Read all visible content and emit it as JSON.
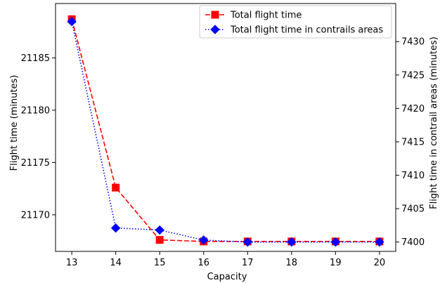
{
  "chart_data": {
    "type": "line",
    "title": "",
    "xlabel": "Capacity",
    "ylabel_left": "Flight time (minutes)",
    "ylabel_right": "Flight time in contrail areas (minutes)",
    "x": [
      13,
      14,
      15,
      16,
      17,
      18,
      19,
      20
    ],
    "x_ticks": [
      "13",
      "14",
      "15",
      "16",
      "17",
      "18",
      "19",
      "20"
    ],
    "xlim": [
      12.63,
      20.37
    ],
    "ylim_left": [
      21166.5,
      21190.2
    ],
    "ylim_right": [
      7398.6,
      7435.7
    ],
    "y_ticks_left": [
      21170,
      21175,
      21180,
      21185
    ],
    "y_ticks_right": [
      7400,
      7405,
      7410,
      7415,
      7420,
      7425,
      7430
    ],
    "grid": false,
    "legend_position": "top-right",
    "series": [
      {
        "name": "Total flight time",
        "axis": "left",
        "color": "#ff0000",
        "line_style": "dashed",
        "marker": "square",
        "values": [
          21188.7,
          21172.6,
          21167.6,
          21167.45,
          21167.45,
          21167.45,
          21167.45,
          21167.45
        ]
      },
      {
        "name": "Total flight time in contrails areas",
        "axis": "right",
        "color": "#0000ff",
        "line_style": "dotted",
        "marker": "diamond",
        "values": [
          7433.0,
          7402.1,
          7401.8,
          7400.3,
          7400.0,
          7400.0,
          7400.0,
          7400.0
        ]
      }
    ]
  }
}
